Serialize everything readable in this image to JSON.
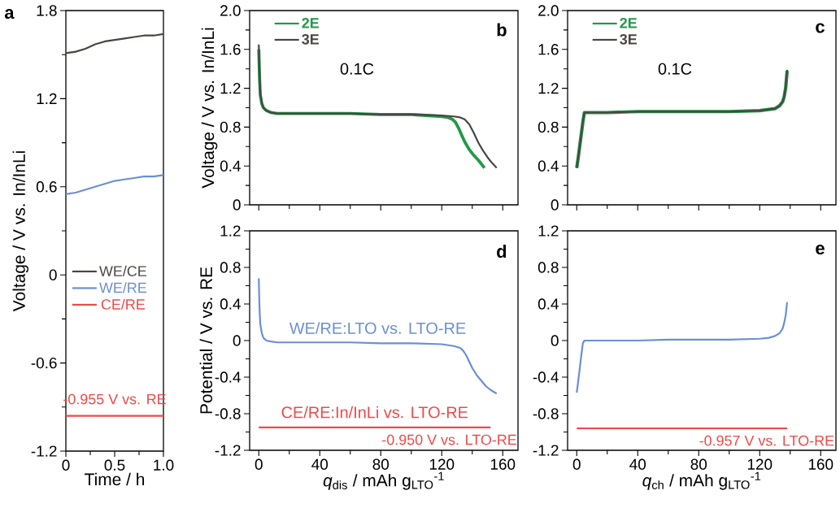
{
  "chart_data": [
    {
      "type": "line",
      "title": "a",
      "xlabel": "Time / h",
      "ylabel": "Voltage / V vs. In/InLi",
      "xlim": [
        0,
        1
      ],
      "xticks": [
        0,
        0.5,
        {
          "value": 1,
          "label": "1.0"
        }
      ],
      "ylim": [
        -1.2,
        1.8
      ],
      "yticks": [
        -1.2,
        -0.6,
        0,
        0.6,
        1.2,
        1.8
      ],
      "legend": "left",
      "annotations": [
        "-0.955 V vs. RE"
      ],
      "series": [
        {
          "name": "WE/CE",
          "color": "#4a4542",
          "x": [
            0,
            0.1,
            0.2,
            0.3,
            0.4,
            0.5,
            0.6,
            0.7,
            0.8,
            0.9,
            1.0
          ],
          "values": [
            1.51,
            1.52,
            1.54,
            1.57,
            1.59,
            1.6,
            1.61,
            1.62,
            1.63,
            1.63,
            1.64
          ]
        },
        {
          "name": "WE/RE",
          "color": "#6b8fd4",
          "x": [
            0,
            0.1,
            0.2,
            0.3,
            0.4,
            0.5,
            0.6,
            0.7,
            0.8,
            0.9,
            1.0
          ],
          "values": [
            0.55,
            0.56,
            0.58,
            0.6,
            0.62,
            0.64,
            0.65,
            0.66,
            0.67,
            0.67,
            0.68
          ]
        },
        {
          "name": "CE/RE",
          "color": "#f04848",
          "x": [
            0,
            1
          ],
          "values": [
            -0.96,
            -0.96
          ]
        }
      ]
    },
    {
      "type": "line",
      "title": "b",
      "ylabel": "Voltage / V vs. In/InLi",
      "xlim": [
        -6,
        170
      ],
      "xticks": [
        0,
        40,
        80,
        120,
        160
      ],
      "ylim": [
        0,
        2
      ],
      "yticks": [
        0,
        0.4,
        0.8,
        1.2,
        1.6,
        {
          "value": 2,
          "label": "2.0"
        }
      ],
      "tick_labels": "y",
      "legend": "top left",
      "annotations": [
        "0.1C"
      ],
      "series": [
        {
          "name": "2E",
          "color": "#1f9a47",
          "x": [
            0,
            0.5,
            1,
            2,
            3,
            5,
            8,
            12,
            20,
            40,
            60,
            80,
            100,
            120,
            124,
            127,
            129,
            131,
            133,
            135,
            138,
            141,
            144,
            148
          ],
          "values": [
            1.6,
            1.3,
            1.13,
            1.04,
            1.0,
            0.97,
            0.95,
            0.94,
            0.94,
            0.94,
            0.94,
            0.93,
            0.93,
            0.91,
            0.9,
            0.88,
            0.85,
            0.79,
            0.72,
            0.65,
            0.57,
            0.51,
            0.46,
            0.38
          ]
        },
        {
          "name": "3E",
          "color": "#4a4542",
          "x": [
            0,
            0.5,
            1,
            2,
            3,
            5,
            8,
            12,
            20,
            40,
            60,
            80,
            100,
            120,
            128,
            132,
            135,
            138,
            141,
            144,
            147,
            150,
            153,
            156
          ],
          "values": [
            1.65,
            1.35,
            1.15,
            1.05,
            1.0,
            0.97,
            0.95,
            0.94,
            0.94,
            0.94,
            0.94,
            0.93,
            0.93,
            0.92,
            0.91,
            0.9,
            0.88,
            0.83,
            0.74,
            0.64,
            0.56,
            0.49,
            0.43,
            0.38
          ]
        }
      ]
    },
    {
      "type": "line",
      "title": "c",
      "xlim": [
        -6,
        170
      ],
      "xticks": [
        0,
        40,
        80,
        120,
        160
      ],
      "ylim": [
        0,
        2
      ],
      "yticks": [
        0,
        0.4,
        0.8,
        1.2,
        1.6,
        {
          "value": 2,
          "label": "2.0"
        }
      ],
      "tick_labels": "y",
      "legend": "top left",
      "annotations": [
        "0.1C"
      ],
      "series": [
        {
          "name": "2E",
          "color": "#1f9a47",
          "x": [
            0,
            1,
            2,
            3,
            4,
            5,
            10,
            20,
            40,
            60,
            80,
            100,
            120,
            125,
            130,
            133,
            135,
            136,
            137,
            138
          ],
          "values": [
            0.38,
            0.49,
            0.61,
            0.73,
            0.85,
            0.95,
            0.95,
            0.95,
            0.96,
            0.96,
            0.96,
            0.96,
            0.97,
            0.98,
            0.99,
            1.02,
            1.06,
            1.11,
            1.2,
            1.38
          ]
        },
        {
          "name": "3E",
          "color": "#4a4542",
          "x": [
            0,
            1,
            2,
            3,
            4,
            5,
            10,
            20,
            40,
            60,
            80,
            100,
            120,
            125,
            130,
            133,
            135,
            136,
            137,
            138
          ],
          "values": [
            0.38,
            0.49,
            0.61,
            0.73,
            0.85,
            0.95,
            0.95,
            0.95,
            0.96,
            0.96,
            0.96,
            0.96,
            0.97,
            0.98,
            0.99,
            1.02,
            1.06,
            1.11,
            1.21,
            1.39
          ]
        }
      ]
    },
    {
      "type": "line",
      "title": "d",
      "xlabel": "*q*$_{dis}$ / mAh g$_{LTO}$$^{-1}$",
      "ylabel": "Potential / V vs. RE",
      "xlim": [
        -6,
        170
      ],
      "xticks": [
        0,
        40,
        80,
        120,
        160
      ],
      "ylim": [
        -1.2,
        1.2
      ],
      "yticks": [
        -1.2,
        -0.8,
        -0.4,
        0,
        0.4,
        0.8,
        1.2
      ],
      "annotations": [
        "-0.950 V vs. LTO-RE"
      ],
      "series": [
        {
          "name": "WE/RE:LTO vs. LTO-RE",
          "color": "#6b8fd4",
          "x": [
            0,
            0.3,
            0.6,
            1,
            2,
            3,
            5,
            8,
            12,
            20,
            40,
            60,
            80,
            100,
            120,
            128,
            132,
            134,
            136,
            138,
            140,
            143,
            146,
            149,
            152,
            156
          ],
          "values": [
            0.68,
            0.45,
            0.3,
            0.18,
            0.08,
            0.03,
            0.0,
            -0.01,
            -0.02,
            -0.02,
            -0.02,
            -0.02,
            -0.03,
            -0.03,
            -0.04,
            -0.06,
            -0.08,
            -0.11,
            -0.16,
            -0.23,
            -0.3,
            -0.38,
            -0.44,
            -0.5,
            -0.54,
            -0.58
          ]
        },
        {
          "name": "CE/RE:In/InLi vs. LTO-RE",
          "color": "#f04848",
          "x": [
            0,
            152
          ],
          "values": [
            -0.95,
            -0.95
          ]
        }
      ]
    },
    {
      "type": "line",
      "title": "e",
      "xlabel": "*q*$_{ch}$ / mAh g$_{LTO}$$^{-1}$",
      "xlim": [
        -6,
        170
      ],
      "xticks": [
        0,
        40,
        80,
        120,
        160
      ],
      "ylim": [
        -1.2,
        1.2
      ],
      "yticks": [
        -1.2,
        -0.8,
        -0.4,
        0,
        0.4,
        0.8,
        1.2
      ],
      "annotations": [
        "-0.957 V vs. LTO-RE"
      ],
      "series": [
        {
          "color": "#6b8fd4",
          "x": [
            0,
            1,
            2,
            3,
            4,
            5,
            10,
            20,
            40,
            60,
            80,
            100,
            120,
            126,
            130,
            133,
            135,
            136,
            137,
            138
          ],
          "values": [
            -0.57,
            -0.44,
            -0.3,
            -0.16,
            -0.03,
            0.0,
            0.0,
            0.0,
            0.0,
            0.01,
            0.01,
            0.01,
            0.02,
            0.03,
            0.05,
            0.08,
            0.13,
            0.19,
            0.27,
            0.42
          ]
        },
        {
          "color": "#f04848",
          "x": [
            0,
            138
          ],
          "values": [
            -0.96,
            -0.96
          ]
        }
      ]
    }
  ]
}
